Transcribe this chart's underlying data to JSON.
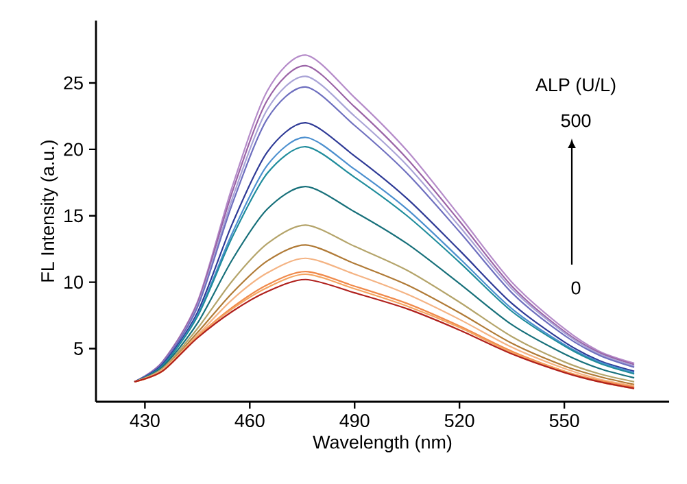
{
  "chart_data": {
    "type": "line",
    "xlabel": "Wavelength (nm)",
    "ylabel": "FL Intensity (a.u.)",
    "x": [
      427,
      435,
      445,
      455,
      465,
      476,
      490,
      505,
      520,
      535,
      550,
      560,
      570
    ],
    "xlim": [
      416,
      580
    ],
    "xticks": [
      430,
      460,
      490,
      520,
      550
    ],
    "ylim": [
      1,
      29.7
    ],
    "yticks": [
      5,
      10,
      15,
      20,
      25
    ],
    "annotations": [
      "ALP (U/L)",
      "500",
      "0"
    ],
    "series": [
      {
        "color": "#b58bc9",
        "values": [
          2.5,
          4.0,
          8.5,
          17.2,
          24.4,
          27.1,
          23.9,
          19.9,
          15.0,
          10.0,
          6.5,
          4.8,
          3.9
        ]
      },
      {
        "color": "#9a63a6",
        "values": [
          2.5,
          4.0,
          8.4,
          16.8,
          23.7,
          26.3,
          23.2,
          19.3,
          14.6,
          9.7,
          6.3,
          4.7,
          3.8
        ]
      },
      {
        "color": "#a9a3d6",
        "values": [
          2.5,
          3.9,
          8.2,
          16.3,
          23.0,
          25.5,
          22.5,
          18.8,
          14.2,
          9.5,
          6.2,
          4.6,
          3.7
        ]
      },
      {
        "color": "#6e6fbf",
        "values": [
          2.5,
          3.9,
          8.1,
          15.9,
          22.3,
          24.7,
          21.8,
          18.2,
          13.8,
          9.2,
          6.0,
          4.5,
          3.6
        ]
      },
      {
        "color": "#2e3a96",
        "values": [
          2.5,
          3.8,
          7.7,
          14.4,
          19.8,
          22.0,
          19.5,
          16.3,
          12.4,
          8.4,
          5.5,
          4.1,
          3.3
        ]
      },
      {
        "color": "#4b8fcf",
        "values": [
          2.5,
          3.7,
          7.5,
          13.7,
          18.8,
          20.9,
          18.5,
          15.5,
          11.8,
          8.0,
          5.3,
          4.0,
          3.2
        ]
      },
      {
        "color": "#1f8c9c",
        "values": [
          2.5,
          3.7,
          7.4,
          13.4,
          18.2,
          20.2,
          17.9,
          15.0,
          11.5,
          7.8,
          5.2,
          3.9,
          3.1
        ]
      },
      {
        "color": "#17707a",
        "values": [
          2.5,
          3.6,
          6.9,
          11.7,
          15.5,
          17.2,
          15.3,
          12.9,
          9.9,
          6.8,
          4.6,
          3.5,
          2.8
        ]
      },
      {
        "color": "#b4a46a",
        "values": [
          2.5,
          3.5,
          6.5,
          10.1,
          12.9,
          14.3,
          12.7,
          10.9,
          8.5,
          5.9,
          4.0,
          3.1,
          2.5
        ]
      },
      {
        "color": "#b07a36",
        "values": [
          2.5,
          3.4,
          6.2,
          9.2,
          11.6,
          12.8,
          11.4,
          9.8,
          7.7,
          5.4,
          3.7,
          2.9,
          2.3
        ]
      },
      {
        "color": "#f4b383",
        "values": [
          2.5,
          3.4,
          6.0,
          8.7,
          10.7,
          11.8,
          10.6,
          9.1,
          7.2,
          5.1,
          3.5,
          2.7,
          2.2
        ]
      },
      {
        "color": "#f08a4b",
        "values": [
          2.5,
          3.3,
          5.9,
          8.1,
          9.8,
          10.8,
          9.7,
          8.4,
          6.7,
          4.8,
          3.3,
          2.6,
          2.1
        ]
      },
      {
        "color": "#f4a460",
        "values": [
          2.5,
          3.3,
          5.9,
          8.0,
          9.6,
          10.6,
          9.5,
          8.2,
          6.6,
          4.7,
          3.3,
          2.5,
          2.0
        ]
      },
      {
        "color": "#b0201c",
        "values": [
          2.5,
          3.3,
          5.8,
          7.8,
          9.3,
          10.2,
          9.2,
          8.0,
          6.4,
          4.6,
          3.2,
          2.5,
          2.0
        ]
      }
    ]
  }
}
